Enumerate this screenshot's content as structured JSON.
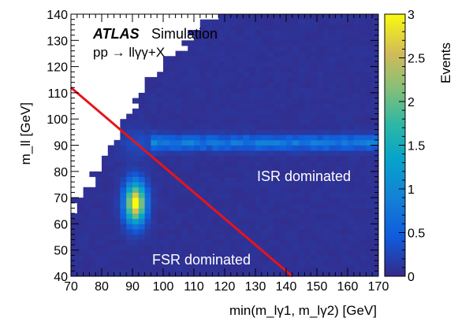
{
  "chart_data": {
    "type": "heatmap",
    "xlabel": "min(m_lγ1, m_lγ2) [GeV]",
    "ylabel": "m_ll [GeV]",
    "xlim": [
      70,
      170
    ],
    "ylim": [
      40,
      140
    ],
    "x_ticks": [
      "70",
      "80",
      "90",
      "100",
      "110",
      "120",
      "130",
      "140",
      "150",
      "160",
      "170"
    ],
    "y_ticks": [
      "40",
      "50",
      "60",
      "70",
      "80",
      "90",
      "100",
      "110",
      "120",
      "130",
      "140"
    ],
    "colorbar": {
      "label": "Events",
      "range": [
        0,
        3
      ],
      "ticks": [
        "0",
        "0.5",
        "1",
        "1.5",
        "2",
        "2.5",
        "3"
      ]
    },
    "experiment": "ATLAS",
    "status": "Simulation",
    "process": "pp → llγγ+X",
    "annotations": [
      "ISR dominated",
      "FSR dominated"
    ],
    "divider_line": {
      "from": [
        70,
        112
      ],
      "to": [
        142,
        40
      ],
      "color": "#e8131b"
    },
    "features": {
      "fsr_peak": {
        "x": 91,
        "y": 68,
        "max_events": 3.0
      },
      "isr_band": {
        "y": 91,
        "x_range": [
          100,
          170
        ],
        "level": 0.9
      }
    }
  }
}
